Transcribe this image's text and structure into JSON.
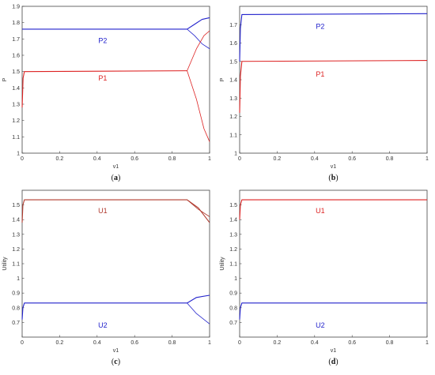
{
  "chart_data": [
    {
      "type": "line",
      "caption": "a",
      "xlabel": "v1",
      "ylabel": "P",
      "xlim": [
        0,
        1
      ],
      "ylim": [
        1,
        1.9
      ],
      "xticks": [
        "0",
        "0.2",
        "0.4",
        "0.6",
        "0.8",
        "1"
      ],
      "yticks": [
        "1",
        "1.1",
        "1.2",
        "1.3",
        "1.4",
        "1.5",
        "1.6",
        "1.7",
        "1.8",
        "1.9"
      ],
      "grid": false,
      "series": [
        {
          "name": "P2",
          "color": "#2222cc",
          "label_at": [
            0.43,
            1.69
          ],
          "segments": [
            [
              [
                0,
                1.76
              ],
              [
                0.88,
                1.76
              ],
              [
                0.92,
                1.79
              ],
              [
                0.96,
                1.82
              ],
              [
                1,
                1.83
              ]
            ],
            [
              [
                0.88,
                1.76
              ],
              [
                0.92,
                1.72
              ],
              [
                0.96,
                1.67
              ],
              [
                1,
                1.64
              ]
            ]
          ]
        },
        {
          "name": "P1",
          "color": "#dd2222",
          "label_at": [
            0.43,
            1.46
          ],
          "segments": [
            [
              [
                0,
                1.28
              ],
              [
                0.005,
                1.46
              ],
              [
                0.012,
                1.5
              ],
              [
                0.88,
                1.505
              ]
            ],
            [
              [
                0.88,
                1.505
              ],
              [
                0.93,
                1.64
              ],
              [
                0.97,
                1.72
              ],
              [
                1,
                1.75
              ]
            ],
            [
              [
                0.88,
                1.505
              ],
              [
                0.93,
                1.33
              ],
              [
                0.97,
                1.15
              ],
              [
                1,
                1.07
              ]
            ]
          ]
        }
      ]
    },
    {
      "type": "line",
      "caption": "b",
      "xlabel": "v1",
      "ylabel": "P",
      "xlim": [
        0,
        1
      ],
      "ylim": [
        1,
        1.8
      ],
      "xticks": [
        "0",
        "0.2",
        "0.4",
        "0.6",
        "0.8",
        "1"
      ],
      "yticks": [
        "1",
        "1.1",
        "1.2",
        "1.3",
        "1.4",
        "1.5",
        "1.6",
        "1.7"
      ],
      "grid": false,
      "series": [
        {
          "name": "P2",
          "color": "#2222cc",
          "label_at": [
            0.43,
            1.69
          ],
          "segments": [
            [
              [
                0,
                1.5
              ],
              [
                0.004,
                1.68
              ],
              [
                0.012,
                1.755
              ],
              [
                1,
                1.76
              ]
            ]
          ]
        },
        {
          "name": "P1",
          "color": "#dd2222",
          "label_at": [
            0.43,
            1.43
          ],
          "segments": [
            [
              [
                0,
                1.22
              ],
              [
                0.004,
                1.42
              ],
              [
                0.012,
                1.5
              ],
              [
                1,
                1.505
              ]
            ]
          ]
        }
      ]
    },
    {
      "type": "line",
      "caption": "c",
      "xlabel": "v1",
      "ylabel": "Utility",
      "xlim": [
        0,
        1
      ],
      "ylim": [
        0.6,
        1.6
      ],
      "xticks": [
        "0",
        "0.2",
        "0.4",
        "0.6",
        "0.8",
        "1"
      ],
      "yticks": [
        "0.7",
        "0.8",
        "0.9",
        "1",
        "1.1",
        "1.2",
        "1.3",
        "1.4",
        "1.5"
      ],
      "grid": false,
      "series": [
        {
          "name": "U1",
          "color": "#b03a2e",
          "label_at": [
            0.43,
            1.46
          ],
          "segments": [
            [
              [
                0,
                1.38
              ],
              [
                0.004,
                1.5
              ],
              [
                0.012,
                1.535
              ],
              [
                0.88,
                1.535
              ],
              [
                0.94,
                1.48
              ],
              [
                1,
                1.38
              ]
            ],
            [
              [
                0.88,
                1.535
              ],
              [
                0.94,
                1.47
              ],
              [
                1,
                1.42
              ]
            ]
          ]
        },
        {
          "name": "U2",
          "color": "#2222cc",
          "label_at": [
            0.43,
            0.68
          ],
          "segments": [
            [
              [
                0,
                0.72
              ],
              [
                0.004,
                0.8
              ],
              [
                0.012,
                0.832
              ],
              [
                0.88,
                0.832
              ],
              [
                0.93,
                0.87
              ],
              [
                1,
                0.885
              ]
            ],
            [
              [
                0.88,
                0.832
              ],
              [
                0.93,
                0.76
              ],
              [
                1,
                0.69
              ]
            ]
          ]
        }
      ]
    },
    {
      "type": "line",
      "caption": "d",
      "xlabel": "v1",
      "ylabel": "Utility",
      "xlim": [
        0,
        1
      ],
      "ylim": [
        0.6,
        1.6
      ],
      "xticks": [
        "0",
        "0.2",
        "0.4",
        "0.6",
        "0.8",
        "1"
      ],
      "yticks": [
        "0.7",
        "0.8",
        "0.9",
        "1",
        "1.1",
        "1.2",
        "1.3",
        "1.4",
        "1.5"
      ],
      "grid": false,
      "series": [
        {
          "name": "U1",
          "color": "#dd2222",
          "label_at": [
            0.43,
            1.46
          ],
          "segments": [
            [
              [
                0,
                1.4
              ],
              [
                0.004,
                1.5
              ],
              [
                0.012,
                1.535
              ],
              [
                1,
                1.535
              ]
            ]
          ]
        },
        {
          "name": "U2",
          "color": "#2222cc",
          "label_at": [
            0.43,
            0.68
          ],
          "segments": [
            [
              [
                0,
                0.72
              ],
              [
                0.004,
                0.8
              ],
              [
                0.012,
                0.832
              ],
              [
                1,
                0.832
              ]
            ]
          ]
        }
      ]
    }
  ]
}
